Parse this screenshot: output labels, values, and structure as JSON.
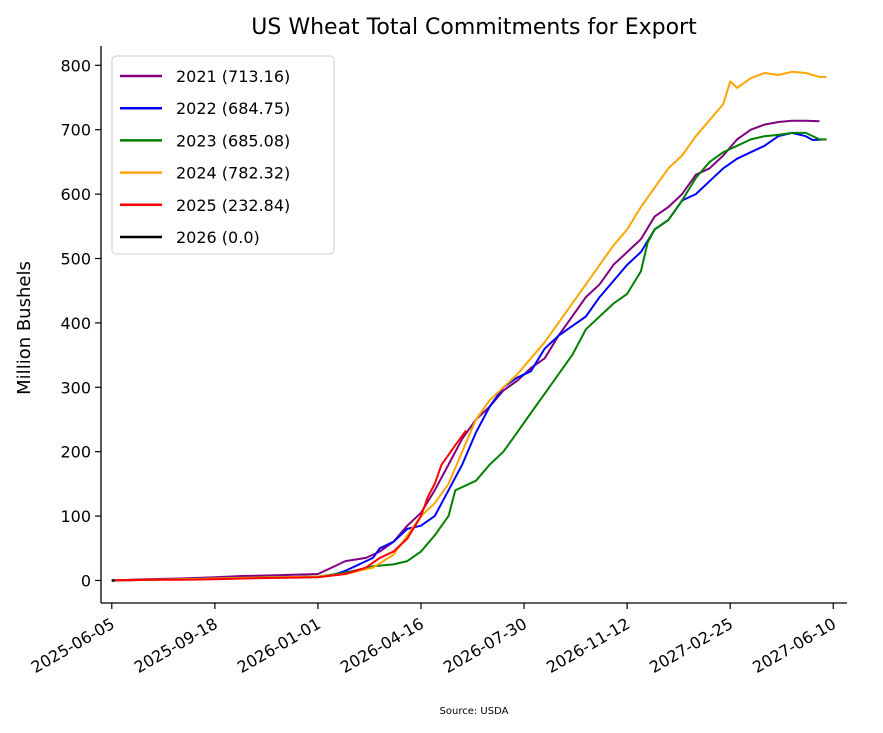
{
  "chart_data": {
    "type": "line",
    "title": "US Wheat Total Commitments for Export",
    "ylabel": "Million Bushels",
    "xlabel": "",
    "source": "Source: USDA",
    "ylim": [
      -35,
      830
    ],
    "xlim": [
      "2025-05-25",
      "2027-06-24"
    ],
    "y_ticks": [
      0,
      100,
      200,
      300,
      400,
      500,
      600,
      700,
      800
    ],
    "x_ticks": [
      "2025-06-05",
      "2025-09-18",
      "2026-01-01",
      "2026-04-16",
      "2026-07-30",
      "2026-11-12",
      "2027-02-25",
      "2027-06-10"
    ],
    "grid": false,
    "legend_position": "top-left",
    "series": [
      {
        "name": "2021 (713.16)",
        "color": "#800080",
        "points": [
          [
            "2025-06-05",
            0
          ],
          [
            "2025-07-10",
            2
          ],
          [
            "2025-08-14",
            3
          ],
          [
            "2025-09-18",
            5
          ],
          [
            "2025-10-16",
            7
          ],
          [
            "2025-11-20",
            8
          ],
          [
            "2026-01-01",
            10
          ],
          [
            "2026-01-15",
            20
          ],
          [
            "2026-01-29",
            30
          ],
          [
            "2026-02-19",
            35
          ],
          [
            "2026-03-05",
            45
          ],
          [
            "2026-03-19",
            60
          ],
          [
            "2026-04-02",
            85
          ],
          [
            "2026-04-16",
            105
          ],
          [
            "2026-04-30",
            140
          ],
          [
            "2026-05-14",
            180
          ],
          [
            "2026-05-28",
            220
          ],
          [
            "2026-06-11",
            250
          ],
          [
            "2026-06-25",
            270
          ],
          [
            "2026-07-09",
            295
          ],
          [
            "2026-07-23",
            310
          ],
          [
            "2026-08-06",
            330
          ],
          [
            "2026-08-20",
            345
          ],
          [
            "2026-09-03",
            380
          ],
          [
            "2026-09-17",
            410
          ],
          [
            "2026-10-01",
            440
          ],
          [
            "2026-10-15",
            460
          ],
          [
            "2026-10-29",
            490
          ],
          [
            "2026-11-12",
            510
          ],
          [
            "2026-11-26",
            530
          ],
          [
            "2026-12-10",
            565
          ],
          [
            "2026-12-24",
            580
          ],
          [
            "2027-01-07",
            600
          ],
          [
            "2027-01-21",
            630
          ],
          [
            "2027-02-04",
            640
          ],
          [
            "2027-02-18",
            660
          ],
          [
            "2027-03-04",
            685
          ],
          [
            "2027-03-18",
            700
          ],
          [
            "2027-04-01",
            708
          ],
          [
            "2027-04-15",
            712
          ],
          [
            "2027-04-29",
            714
          ],
          [
            "2027-05-13",
            714
          ],
          [
            "2027-05-27",
            713
          ]
        ]
      },
      {
        "name": "2022 (684.75)",
        "color": "#0000ff",
        "points": [
          [
            "2025-06-05",
            0
          ],
          [
            "2025-07-10",
            1
          ],
          [
            "2025-08-14",
            2
          ],
          [
            "2025-09-18",
            3
          ],
          [
            "2025-10-16",
            4
          ],
          [
            "2025-11-20",
            5
          ],
          [
            "2026-01-01",
            6
          ],
          [
            "2026-01-15",
            8
          ],
          [
            "2026-01-29",
            15
          ],
          [
            "2026-02-12",
            25
          ],
          [
            "2026-02-26",
            35
          ],
          [
            "2026-03-05",
            50
          ],
          [
            "2026-03-19",
            60
          ],
          [
            "2026-04-02",
            80
          ],
          [
            "2026-04-16",
            85
          ],
          [
            "2026-04-30",
            100
          ],
          [
            "2026-05-14",
            140
          ],
          [
            "2026-05-28",
            180
          ],
          [
            "2026-06-11",
            230
          ],
          [
            "2026-06-25",
            270
          ],
          [
            "2026-07-09",
            300
          ],
          [
            "2026-07-23",
            315
          ],
          [
            "2026-08-06",
            325
          ],
          [
            "2026-08-20",
            360
          ],
          [
            "2026-09-03",
            380
          ],
          [
            "2026-09-17",
            395
          ],
          [
            "2026-10-01",
            410
          ],
          [
            "2026-10-15",
            440
          ],
          [
            "2026-10-29",
            465
          ],
          [
            "2026-11-12",
            490
          ],
          [
            "2026-11-26",
            510
          ],
          [
            "2026-12-10",
            545
          ],
          [
            "2026-12-24",
            560
          ],
          [
            "2027-01-07",
            590
          ],
          [
            "2027-01-21",
            600
          ],
          [
            "2027-02-04",
            620
          ],
          [
            "2027-02-18",
            640
          ],
          [
            "2027-03-04",
            655
          ],
          [
            "2027-03-18",
            665
          ],
          [
            "2027-04-01",
            675
          ],
          [
            "2027-04-15",
            690
          ],
          [
            "2027-04-29",
            695
          ],
          [
            "2027-05-13",
            690
          ],
          [
            "2027-05-20",
            684
          ],
          [
            "2027-06-03",
            685
          ]
        ]
      },
      {
        "name": "2023 (685.08)",
        "color": "#008000",
        "points": [
          [
            "2025-06-05",
            0
          ],
          [
            "2025-07-10",
            1
          ],
          [
            "2025-08-14",
            2
          ],
          [
            "2025-09-18",
            3
          ],
          [
            "2025-10-16",
            4
          ],
          [
            "2025-11-20",
            5
          ],
          [
            "2026-01-01",
            6
          ],
          [
            "2026-01-29",
            12
          ],
          [
            "2026-02-26",
            22
          ],
          [
            "2026-03-19",
            25
          ],
          [
            "2026-04-02",
            30
          ],
          [
            "2026-04-16",
            45
          ],
          [
            "2026-04-30",
            70
          ],
          [
            "2026-05-14",
            100
          ],
          [
            "2026-05-21",
            140
          ],
          [
            "2026-05-28",
            145
          ],
          [
            "2026-06-11",
            155
          ],
          [
            "2026-06-25",
            180
          ],
          [
            "2026-07-09",
            200
          ],
          [
            "2026-07-23",
            230
          ],
          [
            "2026-08-06",
            260
          ],
          [
            "2026-08-20",
            290
          ],
          [
            "2026-09-03",
            320
          ],
          [
            "2026-09-17",
            350
          ],
          [
            "2026-10-01",
            390
          ],
          [
            "2026-10-15",
            410
          ],
          [
            "2026-10-29",
            430
          ],
          [
            "2026-11-12",
            445
          ],
          [
            "2026-11-26",
            480
          ],
          [
            "2026-12-03",
            525
          ],
          [
            "2026-12-10",
            545
          ],
          [
            "2026-12-24",
            560
          ],
          [
            "2027-01-07",
            590
          ],
          [
            "2027-01-21",
            625
          ],
          [
            "2027-02-04",
            650
          ],
          [
            "2027-02-18",
            665
          ],
          [
            "2027-03-04",
            675
          ],
          [
            "2027-03-18",
            685
          ],
          [
            "2027-04-01",
            690
          ],
          [
            "2027-04-15",
            692
          ],
          [
            "2027-04-29",
            695
          ],
          [
            "2027-05-13",
            695
          ],
          [
            "2027-05-27",
            685
          ],
          [
            "2027-06-03",
            685
          ]
        ]
      },
      {
        "name": "2024 (782.32)",
        "color": "#ffa500",
        "points": [
          [
            "2025-06-05",
            0
          ],
          [
            "2025-07-10",
            1
          ],
          [
            "2025-08-14",
            2
          ],
          [
            "2025-09-18",
            3
          ],
          [
            "2025-10-16",
            4
          ],
          [
            "2025-11-20",
            5
          ],
          [
            "2026-01-01",
            6
          ],
          [
            "2026-01-29",
            10
          ],
          [
            "2026-02-26",
            20
          ],
          [
            "2026-03-19",
            40
          ],
          [
            "2026-04-02",
            70
          ],
          [
            "2026-04-16",
            100
          ],
          [
            "2026-04-30",
            120
          ],
          [
            "2026-05-14",
            150
          ],
          [
            "2026-05-28",
            200
          ],
          [
            "2026-06-11",
            250
          ],
          [
            "2026-06-25",
            280
          ],
          [
            "2026-07-09",
            300
          ],
          [
            "2026-07-23",
            320
          ],
          [
            "2026-08-06",
            345
          ],
          [
            "2026-08-20",
            370
          ],
          [
            "2026-09-03",
            400
          ],
          [
            "2026-09-17",
            430
          ],
          [
            "2026-10-01",
            460
          ],
          [
            "2026-10-15",
            490
          ],
          [
            "2026-10-29",
            520
          ],
          [
            "2026-11-12",
            545
          ],
          [
            "2026-11-26",
            580
          ],
          [
            "2026-12-10",
            610
          ],
          [
            "2026-12-24",
            640
          ],
          [
            "2027-01-07",
            660
          ],
          [
            "2027-01-21",
            690
          ],
          [
            "2027-02-04",
            715
          ],
          [
            "2027-02-18",
            740
          ],
          [
            "2027-02-25",
            775
          ],
          [
            "2027-03-04",
            765
          ],
          [
            "2027-03-18",
            780
          ],
          [
            "2027-04-01",
            788
          ],
          [
            "2027-04-15",
            785
          ],
          [
            "2027-04-29",
            790
          ],
          [
            "2027-05-13",
            788
          ],
          [
            "2027-05-27",
            782
          ],
          [
            "2027-06-03",
            782
          ]
        ]
      },
      {
        "name": "2025 (232.84)",
        "color": "#ff0000",
        "points": [
          [
            "2025-06-05",
            0
          ],
          [
            "2025-07-10",
            1
          ],
          [
            "2025-08-14",
            1
          ],
          [
            "2025-09-18",
            2
          ],
          [
            "2025-10-16",
            3
          ],
          [
            "2025-11-20",
            4
          ],
          [
            "2026-01-01",
            5
          ],
          [
            "2026-01-29",
            10
          ],
          [
            "2026-02-19",
            20
          ],
          [
            "2026-03-05",
            35
          ],
          [
            "2026-03-19",
            45
          ],
          [
            "2026-04-02",
            65
          ],
          [
            "2026-04-16",
            100
          ],
          [
            "2026-04-23",
            130
          ],
          [
            "2026-04-30",
            150
          ],
          [
            "2026-05-07",
            180
          ],
          [
            "2026-05-14",
            195
          ],
          [
            "2026-05-21",
            210
          ],
          [
            "2026-06-01",
            232.84
          ]
        ]
      },
      {
        "name": "2026 (0.0)",
        "color": "#000000",
        "points": [
          [
            "2025-06-05",
            0
          ],
          [
            "2025-06-08",
            0
          ]
        ]
      }
    ]
  }
}
